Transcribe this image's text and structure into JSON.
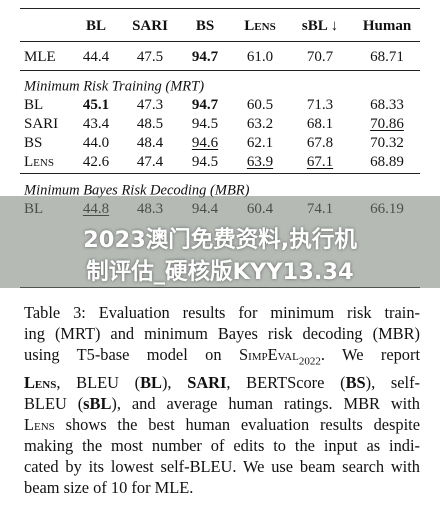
{
  "table": {
    "header": [
      "BL",
      "SARI",
      "BS",
      "Lens",
      "sBL ↓",
      "Human"
    ],
    "mle": [
      "MLE",
      "44.4",
      "47.5",
      "94.7",
      "61.0",
      "70.7",
      "68.71"
    ],
    "sections": [
      {
        "title": "Minimum Risk Training (MRT)",
        "rows": [
          [
            "BL",
            "45.1",
            "47.3",
            "94.7",
            "60.5",
            "71.3",
            "68.33"
          ],
          [
            "SARI",
            "43.4",
            "48.5",
            "94.5",
            "63.2",
            "68.1",
            "70.86"
          ],
          [
            "BS",
            "44.0",
            "48.4",
            "94.6",
            "62.1",
            "67.8",
            "70.32"
          ],
          [
            "Lens",
            "42.6",
            "47.4",
            "94.5",
            "63.9",
            "67.1",
            "68.89"
          ]
        ]
      },
      {
        "title": "Minimum Bayes Risk Decoding (MBR)",
        "rows": [
          [
            "BL",
            "44.8",
            "48.3",
            "94.4",
            "60.4",
            "74.1",
            "66.19"
          ]
        ]
      }
    ]
  },
  "banner": [
    "2023澳门免费资料,执行机",
    "制评估_硬核版KYY13.34"
  ],
  "caption": [
    [
      "Table 3:  Evaluation results for minimum risk train-"
    ],
    [
      "ing (MRT) and minimum Bayes risk decoding (MBR)"
    ],
    [
      "using T5-base model on ",
      "SimpEval",
      "2022",
      ".  We report"
    ],
    [
      "Lens",
      ", BLEU (",
      "BL",
      "), ",
      "SARI",
      ", BERTScore (",
      "BS",
      "), self-"
    ],
    [
      "BLEU (",
      "sBL",
      "), and average human ratings. MBR with"
    ],
    [
      "Lens",
      " shows the best human evaluation results despite"
    ],
    [
      "making the most number of edits to the input as indi-"
    ],
    [
      "cated by its lowest self-BLEU. We use beam search with"
    ],
    [
      "beam size of 10 for MLE."
    ]
  ]
}
